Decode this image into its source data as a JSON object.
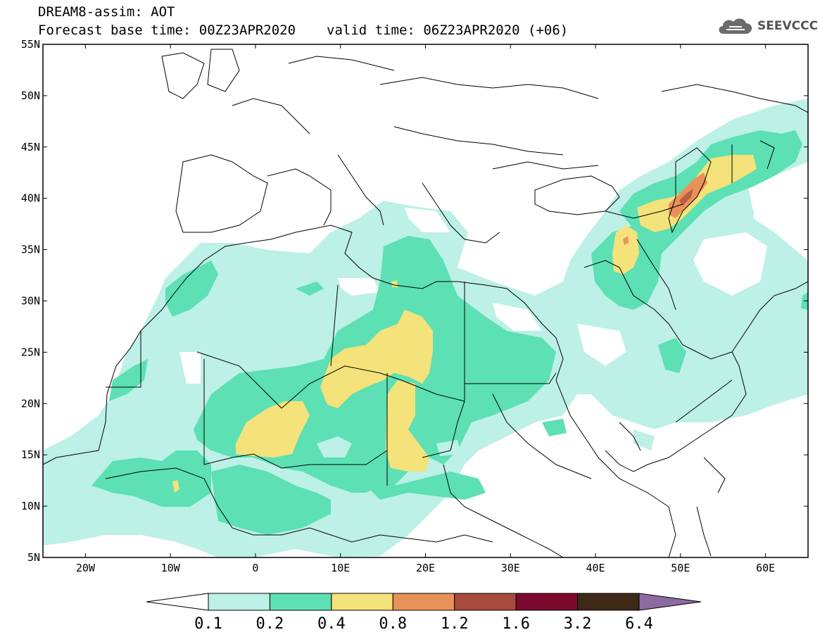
{
  "header": {
    "line1": "DREAM8-assim: AOT",
    "line2_base": "Forecast base time: 00Z23APR2020",
    "line2_valid": "valid time: 06Z23APR2020 (+06)"
  },
  "logo": {
    "text": "SEEVCCC",
    "icon": "cloud-icon"
  },
  "map": {
    "lon_range": [
      -25,
      65
    ],
    "lat_range": [
      5,
      55
    ],
    "lat_ticks": [
      "55N",
      "50N",
      "45N",
      "40N",
      "35N",
      "30N",
      "25N",
      "20N",
      "15N",
      "10N",
      "5N"
    ],
    "lon_ticks": [
      "20W",
      "10W",
      "0",
      "10E",
      "20E",
      "30E",
      "40E",
      "50E",
      "60E"
    ]
  },
  "legend": {
    "levels": [
      "0.1",
      "0.2",
      "0.4",
      "0.8",
      "1.2",
      "1.6",
      "3.2",
      "6.4"
    ],
    "colors": [
      "#ffffff",
      "#bdf0e6",
      "#5ce0b4",
      "#f4e27a",
      "#e8925a",
      "#a84b3c",
      "#7b0a2e",
      "#3e2916",
      "#8e6aa3"
    ]
  },
  "colors": {
    "aot_01": "#bdf0e6",
    "aot_02": "#5ce0b4",
    "aot_04": "#f4e27a",
    "aot_08": "#e8925a",
    "aot_12": "#a84b3c"
  }
}
